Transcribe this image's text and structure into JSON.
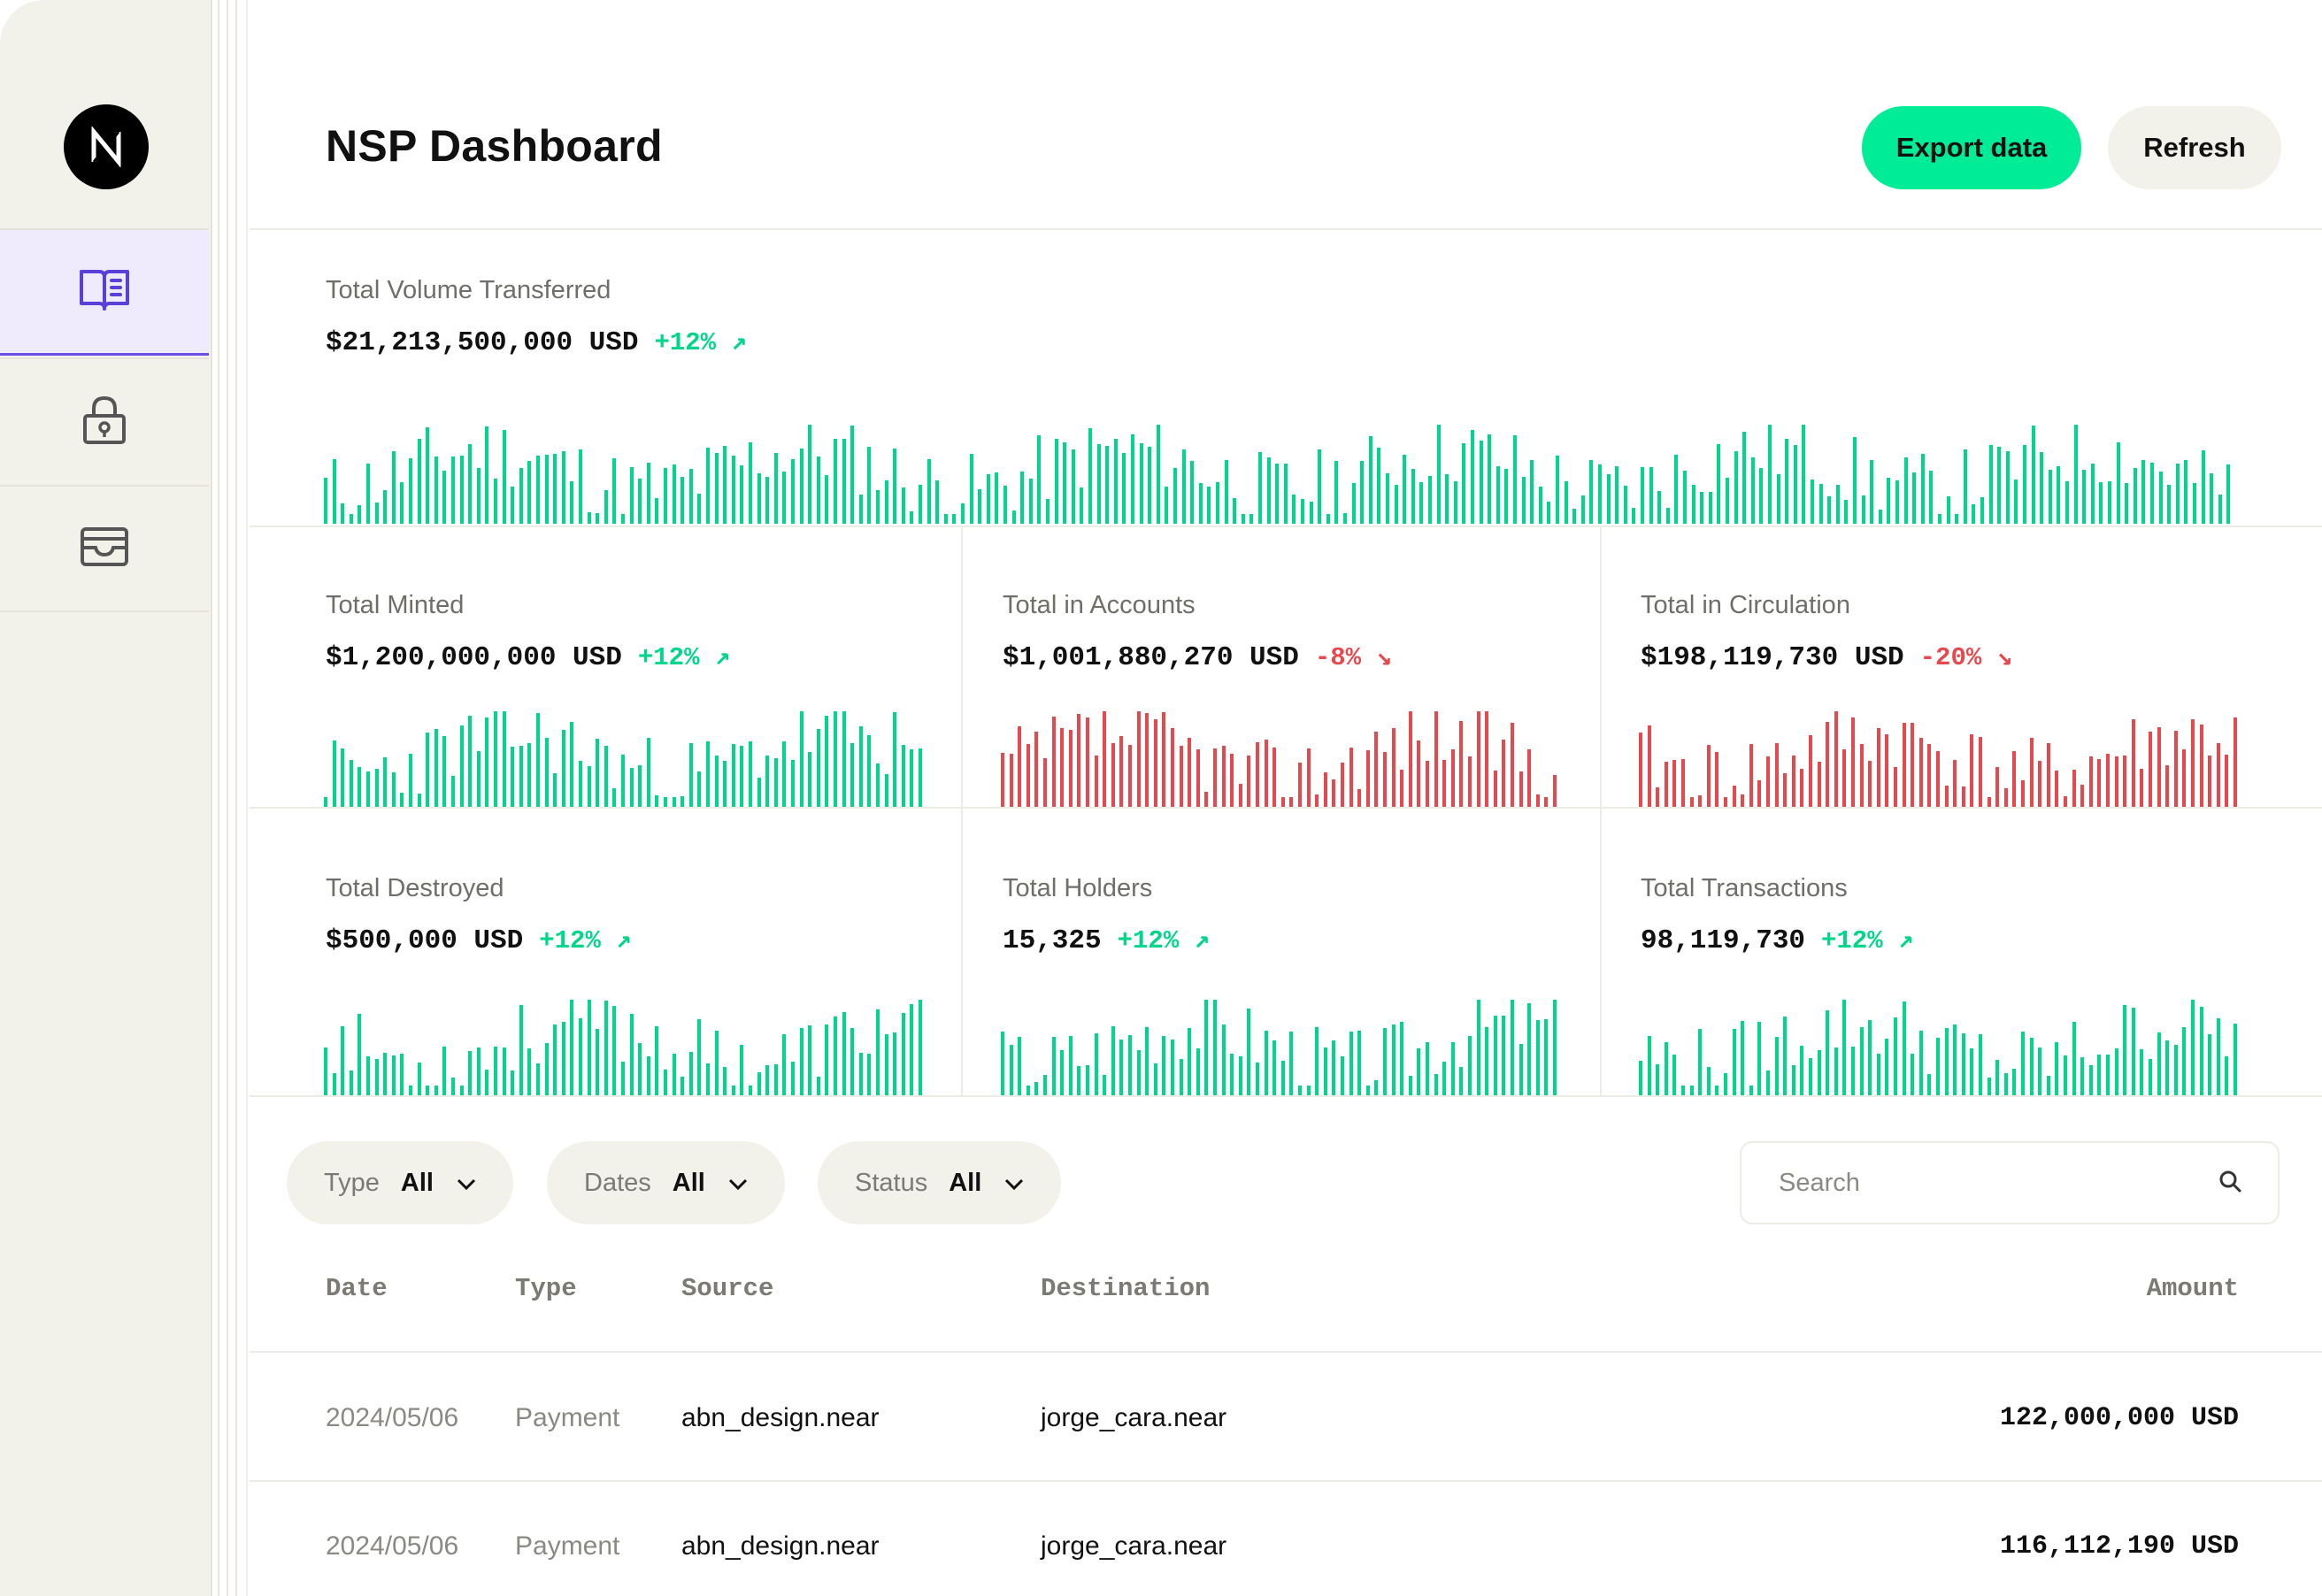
{
  "header": {
    "title": "NSP Dashboard",
    "export_label": "Export data",
    "refresh_label": "Refresh"
  },
  "sidebar": {
    "items": [
      {
        "icon": "book-open-icon",
        "active": true
      },
      {
        "icon": "lock-icon",
        "active": false
      },
      {
        "icon": "wallet-icon",
        "active": false
      }
    ]
  },
  "colors": {
    "accent": "#00ec97",
    "up": "#00d68a",
    "down": "#e5484d",
    "active_nav": "#6b4ee6"
  },
  "stats": {
    "volume": {
      "label": "Total Volume Transferred",
      "value": "$21,213,500,000 USD",
      "change": "+12%",
      "arrow": "↗",
      "trend": "up"
    },
    "minted": {
      "label": "Total Minted",
      "value": "$1,200,000,000 USD",
      "change": "+12%",
      "arrow": "↗",
      "trend": "up"
    },
    "accounts": {
      "label": "Total in Accounts",
      "value": "$1,001,880,270 USD",
      "change": "-8%",
      "arrow": "↘",
      "trend": "down"
    },
    "circulation": {
      "label": "Total in Circulation",
      "value": "$198,119,730 USD",
      "change": "-20%",
      "arrow": "↘",
      "trend": "down"
    },
    "destroyed": {
      "label": "Total Destroyed",
      "value": "$500,000 USD",
      "change": "+12%",
      "arrow": "↗",
      "trend": "up"
    },
    "holders": {
      "label": "Total Holders",
      "value": "15,325",
      "change": "+12%",
      "arrow": "↗",
      "trend": "up"
    },
    "transactions": {
      "label": "Total Transactions",
      "value": "98,119,730",
      "change": "+12%",
      "arrow": "↗",
      "trend": "up"
    }
  },
  "filters": {
    "type": {
      "label": "Type",
      "value": "All"
    },
    "dates": {
      "label": "Dates",
      "value": "All"
    },
    "status": {
      "label": "Status",
      "value": "All"
    },
    "search_placeholder": "Search"
  },
  "table": {
    "columns": {
      "date": "Date",
      "type": "Type",
      "source": "Source",
      "destination": "Destination",
      "amount": "Amount"
    },
    "rows": [
      {
        "date": "2024/05/06",
        "type": "Payment",
        "source": "abn_design.near",
        "destination": "jorge_cara.near",
        "amount": "122,000,000 USD"
      },
      {
        "date": "2024/05/06",
        "type": "Payment",
        "source": "abn_design.near",
        "destination": "jorge_cara.near",
        "amount": "116,112,190 USD"
      }
    ]
  }
}
